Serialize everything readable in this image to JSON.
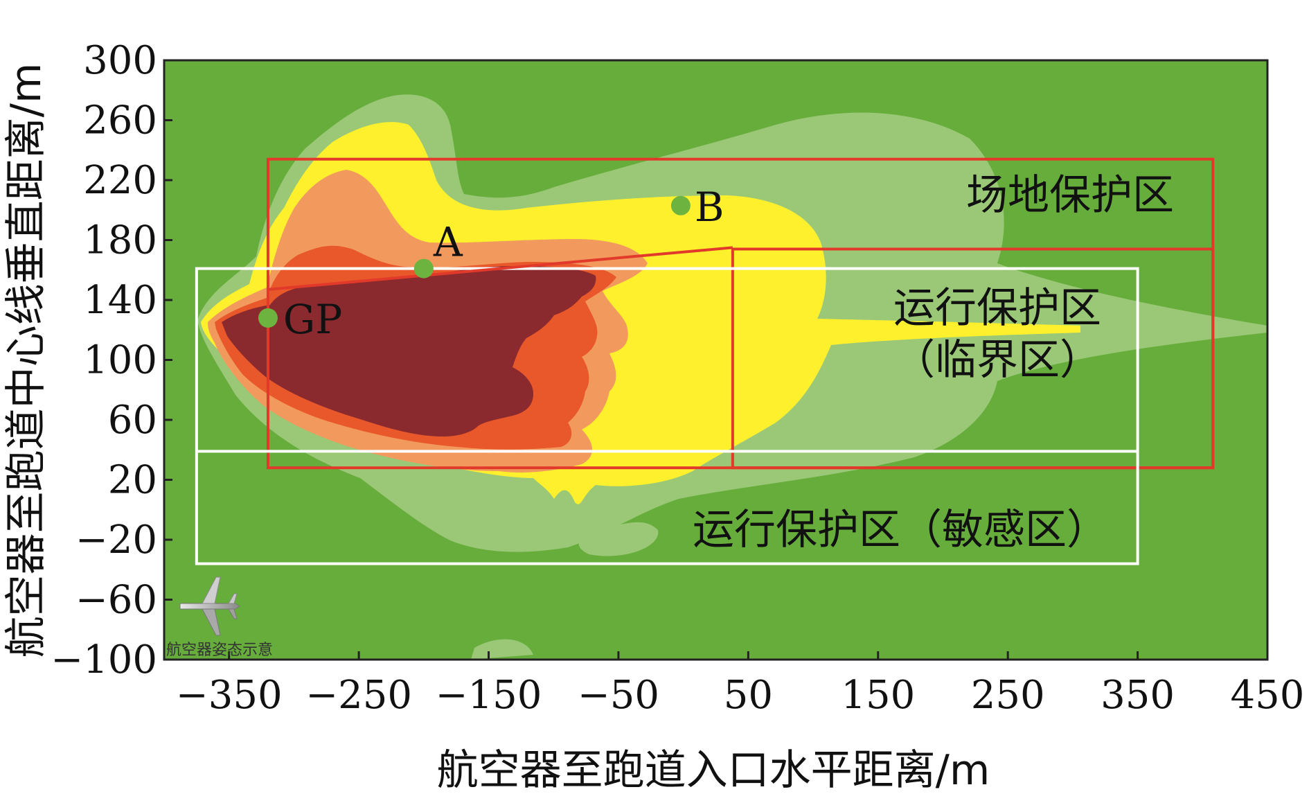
{
  "chart_data": {
    "type": "heatmap",
    "xlabel": "航空器至跑道入口水平距离/m",
    "ylabel": "航空器至跑道中心线垂直距离/m",
    "xlim": [
      -400,
      450
    ],
    "ylim": [
      -100,
      300
    ],
    "x_ticks": [
      -350,
      -250,
      -150,
      -50,
      50,
      150,
      250,
      350,
      450
    ],
    "x_tick_labels": [
      "−350",
      "−250",
      "−150",
      "−50",
      "50",
      "150",
      "250",
      "350",
      "450"
    ],
    "y_ticks": [
      300,
      260,
      220,
      180,
      140,
      100,
      60,
      20,
      -20,
      -60,
      -100
    ],
    "y_tick_labels": [
      "300",
      "260",
      "220",
      "180",
      "140",
      "100",
      "60",
      "20",
      "−20",
      "−60",
      "−100"
    ],
    "grid": false,
    "colors": {
      "level0": "#66ad3c",
      "level1": "#9bc876",
      "level2": "#fff02e",
      "level3": "#f29a5e",
      "level4": "#e8582a",
      "level5": "#8b2a2e",
      "red_box": "#e23a2a",
      "white_box": "#ffffff",
      "point": "#6db33f"
    },
    "points": [
      {
        "label": "GP",
        "x": -320,
        "y": 128
      },
      {
        "label": "A",
        "x": -200,
        "y": 161
      },
      {
        "label": "B",
        "x": -2,
        "y": 203
      }
    ],
    "regions": [
      {
        "label": "场地保护区",
        "color": "red",
        "x": [
          -320,
          408
        ],
        "y": [
          28,
          234
        ]
      },
      {
        "label": "运行保护区",
        "sublabel": "（临界区）",
        "color": "red",
        "x": [
          38,
          408
        ],
        "y": [
          28,
          174
        ]
      },
      {
        "label": "运行保护区（敏感区）",
        "color": "white",
        "x": [
          -375,
          350
        ],
        "y": [
          -36,
          161
        ]
      },
      {
        "label": "",
        "color": "white",
        "x": [
          -375,
          350
        ],
        "y": [
          39,
          39
        ]
      }
    ],
    "critical_boundary_line": [
      [
        -320,
        147
      ],
      [
        38,
        175
      ]
    ]
  },
  "annotation": {
    "aircraft_caption": "航空器姿态示意"
  }
}
